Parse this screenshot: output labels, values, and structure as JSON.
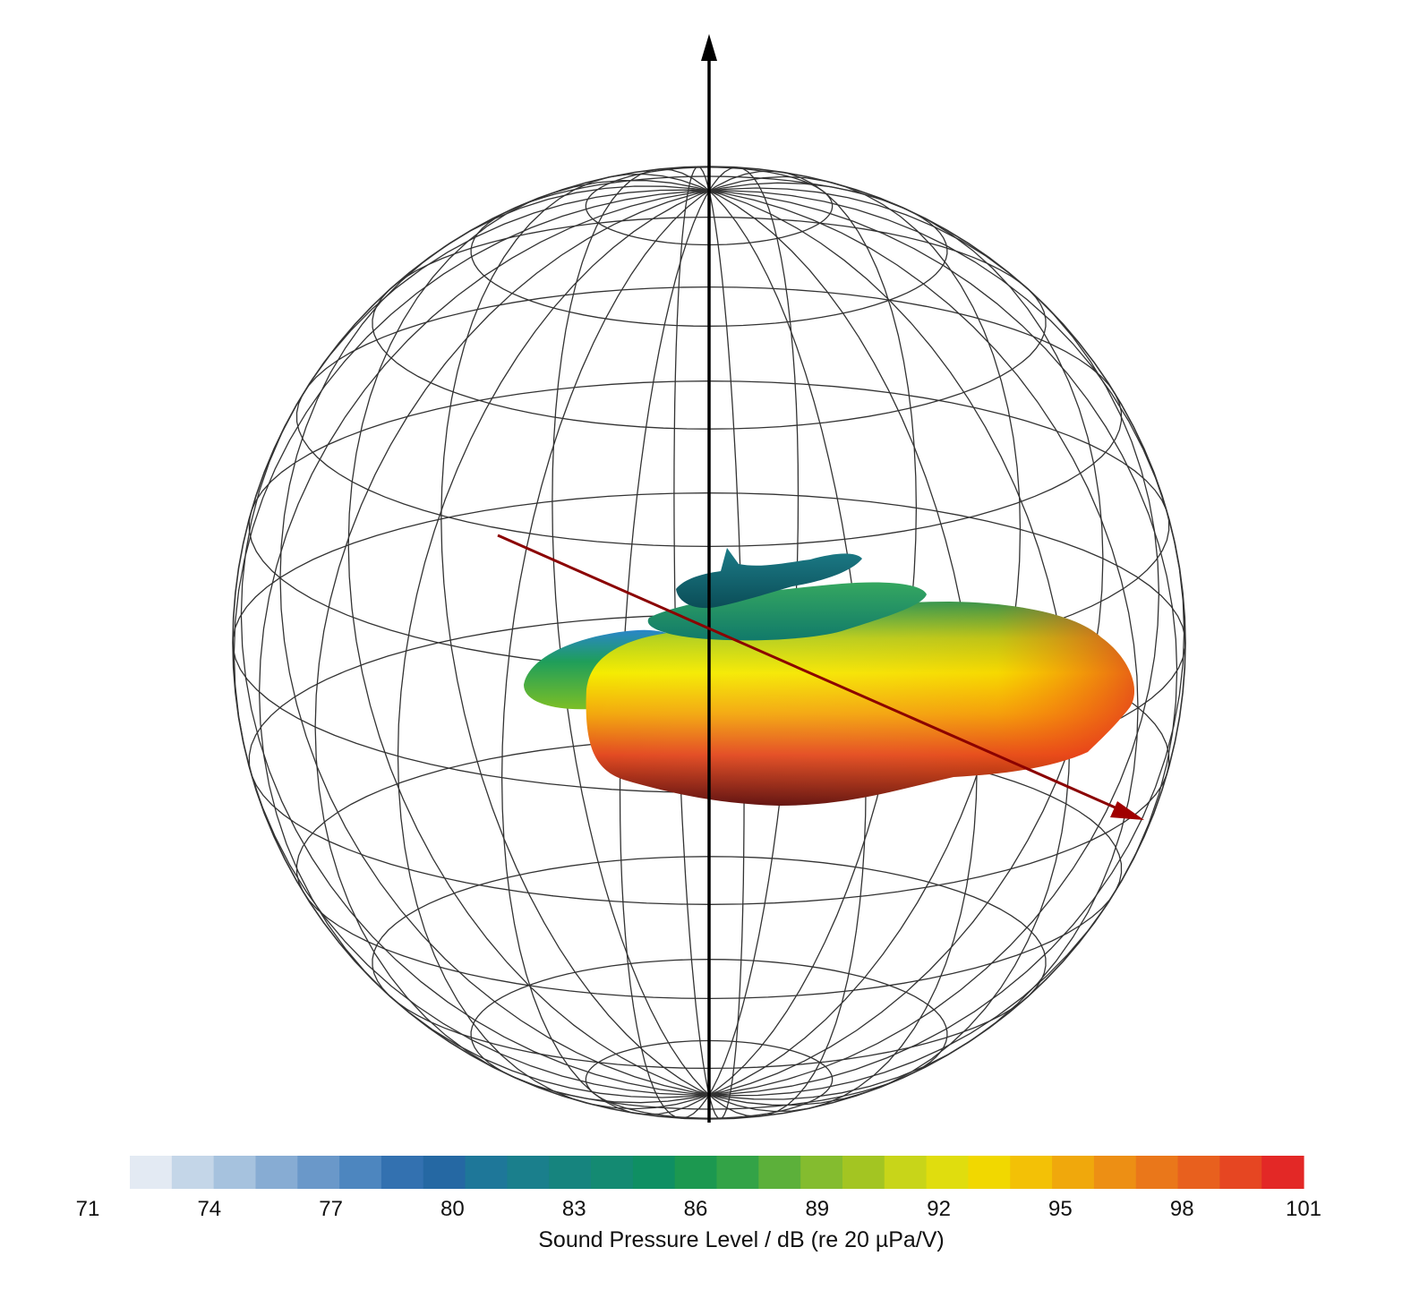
{
  "chart_data": {
    "type": "3d-balloon",
    "colorbar": {
      "label": "Sound Pressure Level / dB (re 20 µPa/V)",
      "min": 71,
      "max": 101,
      "ticks": [
        "71",
        "74",
        "77",
        "80",
        "83",
        "86",
        "89",
        "92",
        "95",
        "98",
        "101"
      ],
      "tick_values": [
        71,
        74,
        77,
        80,
        83,
        86,
        89,
        92,
        95,
        98,
        101
      ],
      "colors": [
        "#e3eaf3",
        "#c4d6e8",
        "#a6c2de",
        "#87acd3",
        "#6a98c9",
        "#4d86bf",
        "#3371b0",
        "#2568a3",
        "#1e7799",
        "#1a7f8c",
        "#16847e",
        "#148a72",
        "#0f8f63",
        "#1c9850",
        "#33a347",
        "#5cb03a",
        "#84bc2f",
        "#a3c522",
        "#c8d519",
        "#e0dd0e",
        "#f1d800",
        "#f3c106",
        "#f0a80c",
        "#ed8f14",
        "#ea771a",
        "#e8601e",
        "#e64622",
        "#e32826"
      ]
    },
    "balloon": {
      "min_level": 78,
      "max_level": 101,
      "main_lobe_direction": "along red arrow (right-front)"
    },
    "axes": {
      "vertical": {
        "color": "#000000"
      },
      "main": {
        "color": "#8b0000"
      }
    },
    "grid": true
  }
}
